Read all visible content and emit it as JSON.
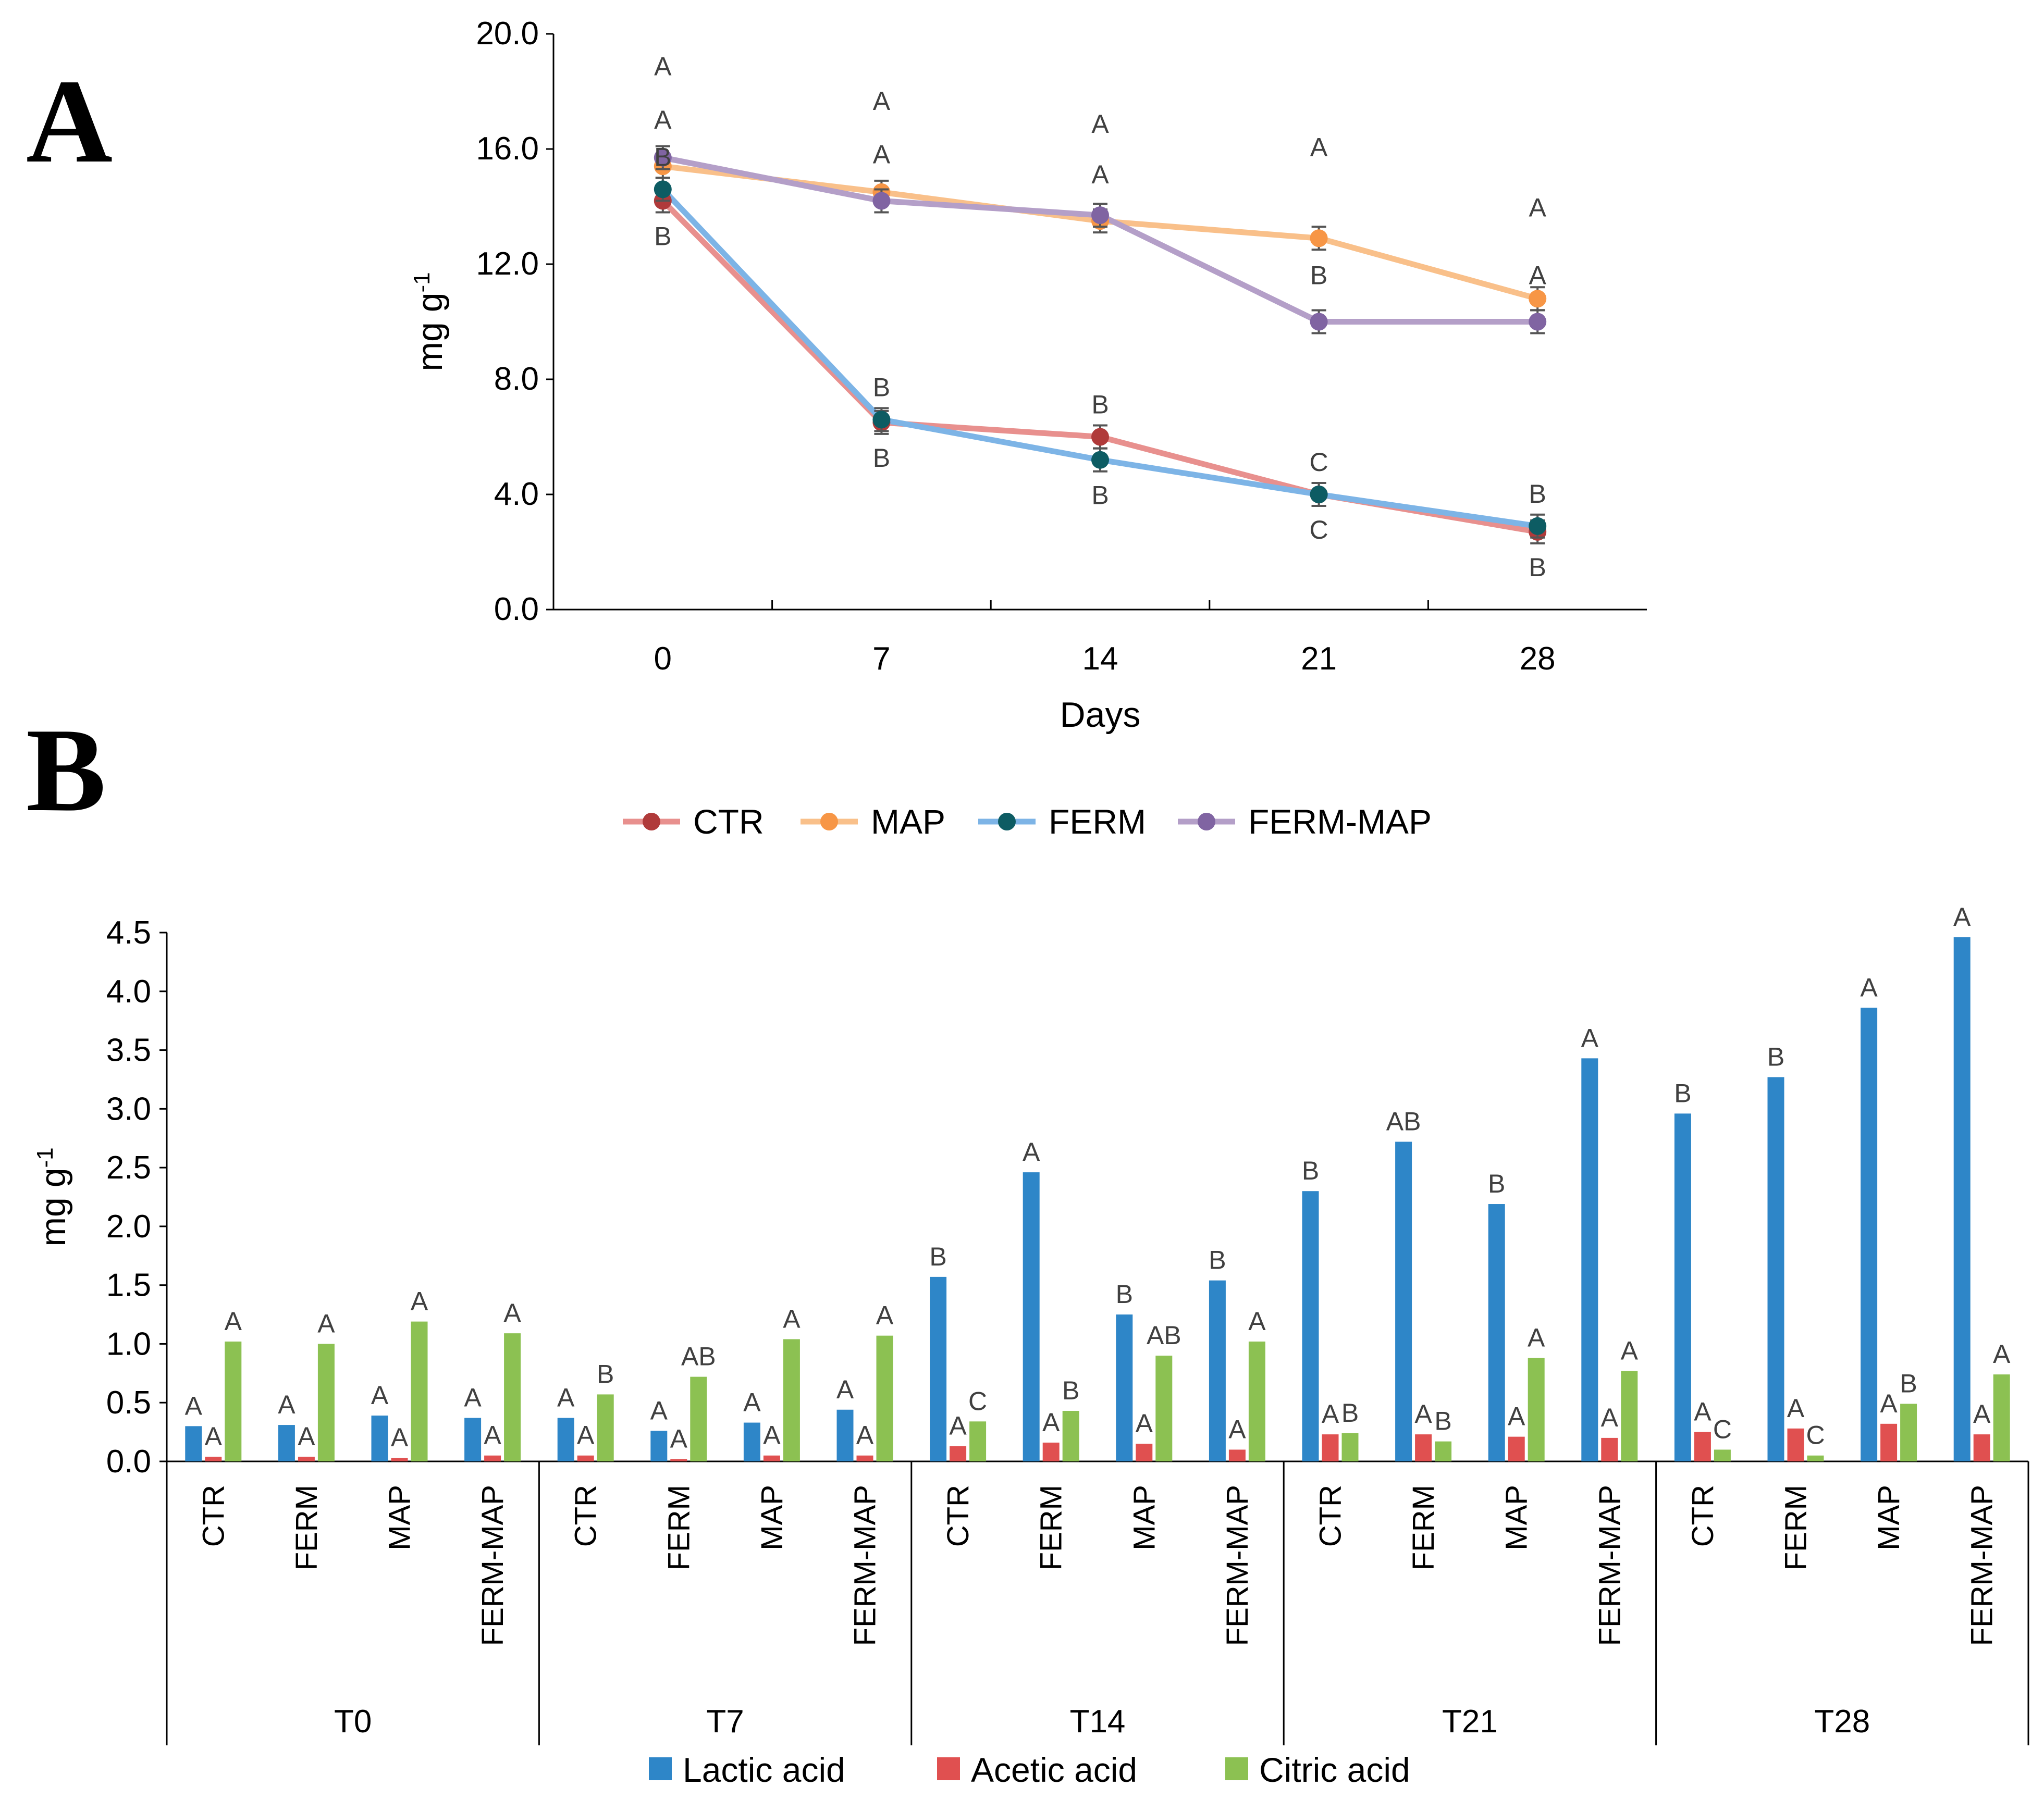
{
  "panel_a_letter": "A",
  "panel_b_letter": "B",
  "chart_data": [
    {
      "type": "line",
      "panel": "A",
      "title": "",
      "xlabel": "Days",
      "ylabel": "mg g",
      "ylabel_sup": "-1",
      "x": [
        "0",
        "7",
        "14",
        "21",
        "28"
      ],
      "ylim": [
        0,
        20
      ],
      "y_ticks": [
        "0.0",
        "4.0",
        "8.0",
        "12.0",
        "16.0",
        "20.0"
      ],
      "error_bars": true,
      "series": [
        {
          "name": "CTR",
          "color": "#E8908E",
          "marker_color": "#B03A3A",
          "values": [
            14.2,
            6.5,
            6.0,
            4.0,
            2.7
          ],
          "labels": [
            "B",
            "B",
            "B",
            "C",
            "B"
          ]
        },
        {
          "name": "MAP",
          "color": "#F9C08A",
          "marker_color": "#F79646",
          "values": [
            15.4,
            14.5,
            13.5,
            12.9,
            10.8
          ],
          "labels": [
            "A",
            "A",
            "A",
            "A",
            "A"
          ]
        },
        {
          "name": "FERM",
          "color": "#7DB4E6",
          "marker_color": "#0D5C63",
          "values": [
            14.6,
            6.6,
            5.2,
            4.0,
            2.9
          ],
          "labels": [
            "B",
            "B",
            "B",
            "C",
            "B"
          ]
        },
        {
          "name": "FERM-MAP",
          "color": "#B49FC8",
          "marker_color": "#8064A2",
          "values": [
            15.7,
            14.2,
            13.7,
            10.0,
            10.0
          ],
          "labels": [
            "A",
            "A",
            "A",
            "B",
            "A"
          ]
        }
      ]
    },
    {
      "type": "bar",
      "panel": "B",
      "title": "",
      "xlabel": "",
      "ylabel": "mg g",
      "ylabel_sup": "-1",
      "ylim": [
        0,
        4.5
      ],
      "y_ticks": [
        "0.0",
        "0.5",
        "1.0",
        "1.5",
        "2.0",
        "2.5",
        "3.0",
        "3.5",
        "4.0",
        "4.5"
      ],
      "groups": [
        {
          "label": "T0",
          "categories": [
            "CTR",
            "FERM",
            "MAP",
            "FERM-MAP"
          ]
        },
        {
          "label": "T7",
          "categories": [
            "CTR",
            "FERM",
            "MAP",
            "FERM-MAP"
          ]
        },
        {
          "label": "T14",
          "categories": [
            "CTR",
            "FERM",
            "MAP",
            "FERM-MAP"
          ]
        },
        {
          "label": "T21",
          "categories": [
            "CTR",
            "FERM",
            "MAP",
            "FERM-MAP"
          ]
        },
        {
          "label": "T28",
          "categories": [
            "CTR",
            "FERM",
            "MAP",
            "FERM-MAP"
          ]
        }
      ],
      "series": [
        {
          "name": "Lactic acid",
          "color": "#2E86C8",
          "values": [
            0.3,
            0.31,
            0.39,
            0.37,
            0.37,
            0.26,
            0.33,
            0.44,
            1.57,
            2.46,
            1.25,
            1.54,
            2.3,
            2.72,
            2.19,
            3.43,
            2.96,
            3.27,
            3.86,
            4.46
          ],
          "labels": [
            "A",
            "A",
            "A",
            "A",
            "A",
            "A",
            "A",
            "A",
            "B",
            "A",
            "B",
            "B",
            "B",
            "AB",
            "B",
            "A",
            "B",
            "B",
            "A",
            "A"
          ]
        },
        {
          "name": "Acetic acid",
          "color": "#E05050",
          "values": [
            0.04,
            0.04,
            0.03,
            0.05,
            0.05,
            0.02,
            0.05,
            0.05,
            0.13,
            0.16,
            0.15,
            0.1,
            0.23,
            0.23,
            0.21,
            0.2,
            0.25,
            0.28,
            0.32,
            0.23
          ],
          "labels": [
            "A",
            "A",
            "A",
            "A",
            "A",
            "A",
            "A",
            "A",
            "A",
            "A",
            "A",
            "A",
            "A",
            "A",
            "A",
            "A",
            "A",
            "A",
            "A",
            "A"
          ]
        },
        {
          "name": "Citric acid",
          "color": "#8CC152",
          "values": [
            1.02,
            1.0,
            1.19,
            1.09,
            0.57,
            0.72,
            1.04,
            1.07,
            0.34,
            0.43,
            0.9,
            1.02,
            0.24,
            0.17,
            0.88,
            0.77,
            0.1,
            0.05,
            0.49,
            0.74
          ],
          "labels": [
            "A",
            "A",
            "A",
            "A",
            "B",
            "AB",
            "A",
            "A",
            "C",
            "B",
            "AB",
            "A",
            "B",
            "B",
            "A",
            "A",
            "C",
            "C",
            "B",
            "A"
          ]
        }
      ]
    }
  ]
}
